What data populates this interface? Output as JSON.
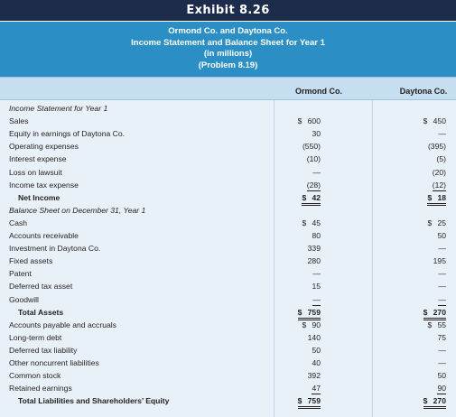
{
  "exhibit": "Exhibit 8.26",
  "title": {
    "line1": "Ormond Co. and Daytona Co.",
    "line2": "Income Statement and Balance Sheet for Year 1",
    "line3": "(in millions)",
    "line4": "(Problem 8.19)"
  },
  "columns": {
    "ormond": "Ormond Co.",
    "daytona": "Daytona Co."
  },
  "rows": [
    {
      "label": "Income Statement for Year 1",
      "type": "section",
      "o": "",
      "d": ""
    },
    {
      "label": "Sales",
      "o": "600",
      "od": "$",
      "d": "450",
      "dd": "$"
    },
    {
      "label": "Equity in earnings of Daytona Co.",
      "o": "30",
      "d": "—"
    },
    {
      "label": "Operating expenses",
      "o": "(550)",
      "d": "(395)"
    },
    {
      "label": "Interest expense",
      "o": "(10)",
      "d": "(5)"
    },
    {
      "label": "Loss on lawsuit",
      "o": "—",
      "d": "(20)"
    },
    {
      "label": "Income tax expense",
      "o": "(28)",
      "d": "(12)",
      "ou": "single",
      "du": "single"
    },
    {
      "label": "Net Income",
      "type": "total",
      "o": "42",
      "od": "$",
      "d": "18",
      "dd": "$",
      "ou": "double",
      "du": "double"
    },
    {
      "label": "Balance Sheet on December 31, Year 1",
      "type": "section",
      "o": "",
      "d": ""
    },
    {
      "label": "Cash",
      "o": "45",
      "od": "$",
      "d": "25",
      "dd": "$"
    },
    {
      "label": "Accounts receivable",
      "o": "80",
      "d": "50"
    },
    {
      "label": "Investment in Daytona Co.",
      "o": "339",
      "d": "—"
    },
    {
      "label": "Fixed assets",
      "o": "280",
      "d": "195"
    },
    {
      "label": "Patent",
      "o": "—",
      "d": "—"
    },
    {
      "label": "Deferred tax asset",
      "o": "15",
      "d": "—"
    },
    {
      "label": "Goodwill",
      "o": "—",
      "d": "—",
      "ou": "single",
      "du": "single"
    },
    {
      "label": "Total Assets",
      "type": "total",
      "o": "759",
      "od": "$",
      "d": "270",
      "dd": "$",
      "ou": "double",
      "du": "double"
    },
    {
      "label": "Accounts payable and accruals",
      "o": "90",
      "od": "$",
      "d": "55",
      "dd": "$"
    },
    {
      "label": "Long-term debt",
      "o": "140",
      "d": "75"
    },
    {
      "label": "Deferred tax liability",
      "o": "50",
      "d": "—"
    },
    {
      "label": "Other noncurrent liabilities",
      "o": "40",
      "d": "—"
    },
    {
      "label": "Common stock",
      "o": "392",
      "d": "50"
    },
    {
      "label": "Retained earnings",
      "o": "47",
      "d": "90",
      "ou": "single",
      "du": "single"
    },
    {
      "label": "Total Liabilities and Shareholders’ Equity",
      "type": "total",
      "o": "759",
      "od": "$",
      "d": "270",
      "dd": "$",
      "ou": "double",
      "du": "double"
    }
  ]
}
